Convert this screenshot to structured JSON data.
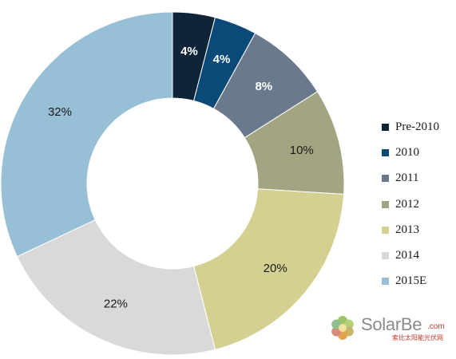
{
  "chart_data": {
    "type": "pie",
    "donut": true,
    "legend_position": "right",
    "slices": [
      {
        "label": "Pre-2010",
        "value": 4,
        "value_label": "4%",
        "color": "#0f2438",
        "label_color": "#ffffff",
        "bold": true
      },
      {
        "label": "2010",
        "value": 4,
        "value_label": "4%",
        "color": "#0b4a78",
        "label_color": "#ffffff",
        "bold": true
      },
      {
        "label": "2011",
        "value": 8,
        "value_label": "8%",
        "color": "#6a7a8c",
        "label_color": "#ffffff",
        "bold": true
      },
      {
        "label": "2012",
        "value": 10,
        "value_label": "10%",
        "color": "#a3a582",
        "label_color": "#1a1a1a",
        "bold": false
      },
      {
        "label": "2013",
        "value": 20,
        "value_label": "20%",
        "color": "#d3d092",
        "label_color": "#1a1a1a",
        "bold": false
      },
      {
        "label": "2014",
        "value": 22,
        "value_label": "22%",
        "color": "#d9d9d9",
        "label_color": "#1a1a1a",
        "bold": false
      },
      {
        "label": "2015E",
        "value": 32,
        "value_label": "32%",
        "color": "#97bfd6",
        "label_color": "#1a1a1a",
        "bold": false
      }
    ]
  },
  "watermark": {
    "brand": "SolarBe",
    "suffix": ".com",
    "subtitle": "索比太阳能光伏网",
    "icon": "flower-logo-icon"
  }
}
